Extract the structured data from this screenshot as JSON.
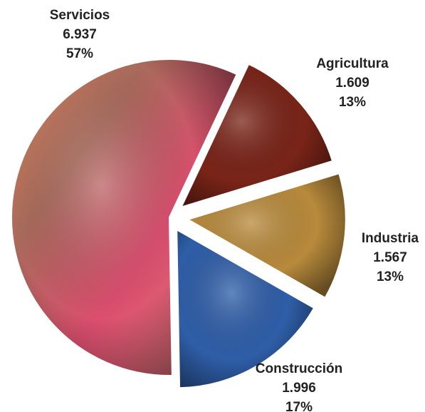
{
  "chart_data": {
    "type": "pie",
    "categories": [
      "Servicios",
      "Agricultura",
      "Industria",
      "Construcción"
    ],
    "values": [
      6.937,
      1.609,
      1.567,
      1.996
    ],
    "percent_labels": [
      "57%",
      "13%",
      "13%",
      "17%"
    ],
    "colors": [
      "#d8566a",
      "#7a2418",
      "#b88a3c",
      "#2f5ea8"
    ]
  }
}
